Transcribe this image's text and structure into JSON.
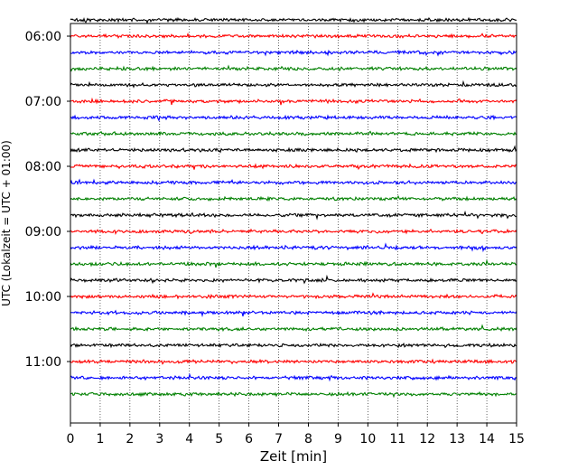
{
  "chart_data": {
    "type": "line",
    "title": "",
    "xlabel": "Zeit  [min]",
    "ylabel": "UTC (Lokalzeit = UTC + 01:00)",
    "xlim": [
      0,
      15
    ],
    "xticks": [
      0,
      1,
      2,
      3,
      4,
      5,
      6,
      7,
      8,
      9,
      10,
      11,
      12,
      13,
      14,
      15
    ],
    "ytick_labels": [
      "06:00",
      "07:00",
      "08:00",
      "09:00",
      "10:00",
      "11:00"
    ],
    "trace_start": "05:45",
    "trace_interval_minutes": 15,
    "trace_count": 24,
    "trace_colors": [
      "#000000",
      "#ff0000",
      "#0000ff",
      "#008000"
    ],
    "vertical_grid": true,
    "grid_style": "dotted",
    "legend": "none",
    "series": [
      {
        "start_time": "05:45",
        "color": "#000000"
      },
      {
        "start_time": "06:00",
        "color": "#ff0000"
      },
      {
        "start_time": "06:15",
        "color": "#0000ff"
      },
      {
        "start_time": "06:30",
        "color": "#008000"
      },
      {
        "start_time": "06:45",
        "color": "#000000"
      },
      {
        "start_time": "07:00",
        "color": "#ff0000"
      },
      {
        "start_time": "07:15",
        "color": "#0000ff"
      },
      {
        "start_time": "07:30",
        "color": "#008000"
      },
      {
        "start_time": "07:45",
        "color": "#000000"
      },
      {
        "start_time": "08:00",
        "color": "#ff0000"
      },
      {
        "start_time": "08:15",
        "color": "#0000ff"
      },
      {
        "start_time": "08:30",
        "color": "#008000"
      },
      {
        "start_time": "08:45",
        "color": "#000000"
      },
      {
        "start_time": "09:00",
        "color": "#ff0000"
      },
      {
        "start_time": "09:15",
        "color": "#0000ff"
      },
      {
        "start_time": "09:30",
        "color": "#008000"
      },
      {
        "start_time": "09:45",
        "color": "#000000"
      },
      {
        "start_time": "10:00",
        "color": "#ff0000"
      },
      {
        "start_time": "10:15",
        "color": "#0000ff"
      },
      {
        "start_time": "10:30",
        "color": "#008000"
      },
      {
        "start_time": "10:45",
        "color": "#000000"
      },
      {
        "start_time": "11:00",
        "color": "#ff0000"
      },
      {
        "start_time": "11:15",
        "color": "#0000ff"
      },
      {
        "start_time": "11:30",
        "color": "#008000"
      }
    ]
  }
}
